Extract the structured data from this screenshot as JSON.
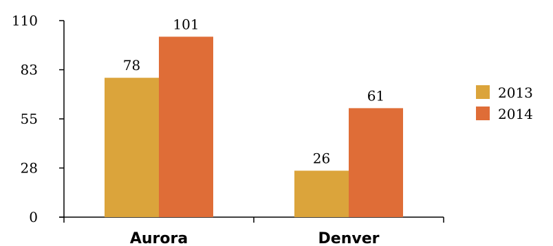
{
  "chart_data": {
    "type": "bar",
    "categories": [
      "Aurora",
      "Denver"
    ],
    "series": [
      {
        "name": "2013",
        "values": [
          78,
          26
        ],
        "color": "#DBA43B"
      },
      {
        "name": "2014",
        "values": [
          101,
          61
        ],
        "color": "#DF6D37"
      }
    ],
    "ylim": [
      0,
      110
    ],
    "yticks": [
      "0",
      "28",
      "55",
      "83",
      "110"
    ],
    "ytick_values": [
      0,
      27.5,
      55,
      82.5,
      110
    ],
    "title": "",
    "xlabel": "",
    "ylabel": "",
    "legend_position": "right",
    "grid": false
  }
}
